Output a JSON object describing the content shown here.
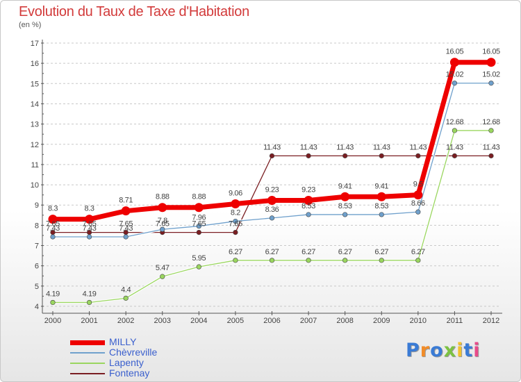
{
  "header": {
    "title": "Evolution du Taux de Taxe d'Habitation",
    "subtitle": "(en %)"
  },
  "logo": {
    "text": "Proxiti",
    "letter_colors": [
      "#3a7bd5",
      "#f28c28",
      "#3a7bd5",
      "#7cc242",
      "#f2c230",
      "#3a7bd5",
      "#e84b8a"
    ]
  },
  "chart_data": {
    "type": "line",
    "title": "Evolution du Taux de Taxe d'Habitation",
    "subtitle": "(en %)",
    "xlabel": "",
    "ylabel": "",
    "x": [
      "2000",
      "2001",
      "2002",
      "2003",
      "2004",
      "2005",
      "2006",
      "2007",
      "2008",
      "2009",
      "2010",
      "2011",
      "2012"
    ],
    "ylim": [
      4,
      17
    ],
    "yticks": [
      "4",
      "5",
      "6",
      "7",
      "8",
      "9",
      "10",
      "11",
      "12",
      "13",
      "14",
      "15",
      "16",
      "17"
    ],
    "grid": "dashed-horizontal",
    "legend_position": "bottom-left",
    "series": [
      {
        "name": "Fontenay",
        "color": "#7a1e22",
        "stroke": 1.3,
        "values": [
          7.65,
          7.65,
          7.65,
          7.65,
          7.65,
          7.65,
          11.43,
          11.43,
          11.43,
          11.43,
          11.43,
          11.43,
          11.43
        ],
        "labels": [
          "7.65",
          "7.65",
          "7.65",
          "7.65",
          "7.65",
          "7.65",
          "11.43",
          "11.43",
          "11.43",
          "11.43",
          "11.43",
          "11.43",
          "11.43"
        ]
      },
      {
        "name": "Lapenty",
        "color": "#9ad65f",
        "stroke": 1.3,
        "values": [
          4.19,
          4.19,
          4.4,
          5.47,
          5.95,
          6.27,
          6.27,
          6.27,
          6.27,
          6.27,
          6.27,
          12.68,
          12.68
        ],
        "labels": [
          "4.19",
          "4.19",
          "4.4",
          "5.47",
          "5.95",
          "6.27",
          "6.27",
          "6.27",
          "6.27",
          "6.27",
          "6.27",
          "12.68",
          "12.68"
        ]
      },
      {
        "name": "Chèvreville",
        "color": "#6fa0cc",
        "stroke": 1.3,
        "values": [
          7.43,
          7.43,
          7.43,
          7.8,
          7.96,
          8.2,
          8.36,
          8.53,
          8.53,
          8.53,
          8.66,
          15.02,
          15.02
        ],
        "labels": [
          "7.43",
          "7.43",
          "7.43",
          "7.8",
          "7.96",
          "8.2",
          "8.36",
          "8.53",
          "8.53",
          "8.53",
          "8.66",
          "15.02",
          "15.02"
        ]
      },
      {
        "name": "MILLY",
        "color": "#ee0000",
        "stroke": 7,
        "values": [
          8.3,
          8.3,
          8.71,
          8.88,
          8.88,
          9.06,
          9.23,
          9.23,
          9.41,
          9.41,
          9.5,
          16.05,
          16.05
        ],
        "labels": [
          "8.3",
          "8.3",
          "8.71",
          "8.88",
          "8.88",
          "9.06",
          "9.23",
          "9.23",
          "9.41",
          "9.41",
          "9.5",
          "16.05",
          "16.05"
        ]
      }
    ],
    "legend": [
      "MILLY",
      "Chèvreville",
      "Lapenty",
      "Fontenay"
    ]
  }
}
